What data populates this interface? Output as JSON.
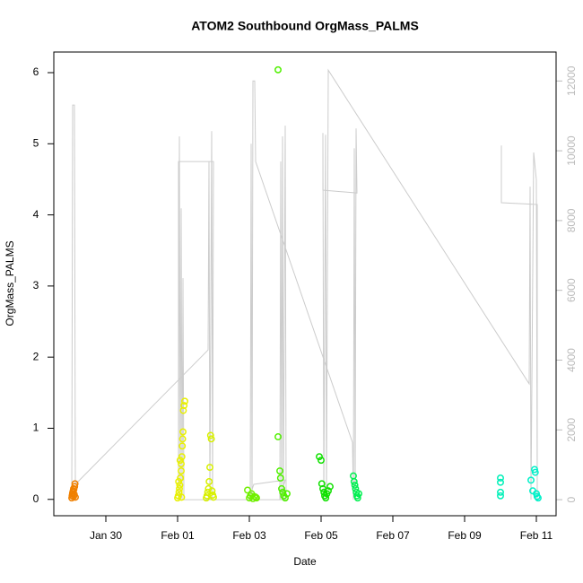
{
  "chart_data": {
    "type": "scatter",
    "title": "ATOM2 Southbound OrgMass_PALMS",
    "x_label": "Date",
    "y_label": "OrgMass_PALMS",
    "xlim": [
      28.55,
      42.55
    ],
    "xticks": [
      {
        "value": 30,
        "label": "Jan 30"
      },
      {
        "value": 32,
        "label": "Feb 01"
      },
      {
        "value": 34,
        "label": "Feb 03"
      },
      {
        "value": 36,
        "label": "Feb 05"
      },
      {
        "value": 38,
        "label": "Feb 07"
      },
      {
        "value": 40,
        "label": "Feb 09"
      },
      {
        "value": 42,
        "label": "Feb 11"
      }
    ],
    "ylim": [
      -0.23,
      6.29
    ],
    "yticks": [
      0,
      1,
      2,
      3,
      4,
      5,
      6
    ],
    "y2lim": [
      -460,
      12830
    ],
    "y2ticks": [
      0,
      2000,
      4000,
      6000,
      8000,
      10000,
      12000
    ],
    "grid": false,
    "series": [
      {
        "color": "#f08000",
        "x": [
          29.05,
          29.06,
          29.07,
          29.08,
          29.09,
          29.1,
          29.11,
          29.12,
          29.13,
          29.14,
          29.15,
          29.1
        ],
        "values": [
          0.02,
          0.05,
          0.08,
          0.1,
          0.12,
          0.04,
          0.14,
          0.07,
          0.18,
          0.22,
          0.03,
          0.15
        ]
      },
      {
        "color": "#e8f000",
        "x": [
          32.0,
          32.02,
          32.04,
          32.05,
          32.06,
          32.08,
          32.1,
          32.1,
          32.12,
          32.13,
          32.14,
          32.15,
          32.16,
          32.18,
          32.2,
          32.03,
          32.07,
          32.11
        ],
        "values": [
          0.02,
          0.05,
          0.1,
          0.15,
          0.2,
          0.3,
          0.4,
          0.5,
          0.6,
          0.75,
          0.85,
          0.95,
          1.25,
          1.32,
          1.38,
          0.25,
          0.55,
          0.03
        ]
      },
      {
        "color": "#d8f000",
        "x": [
          32.8,
          32.82,
          32.84,
          32.86,
          32.88,
          32.9,
          32.92,
          32.94,
          32.96,
          32.98,
          33.0
        ],
        "values": [
          0.02,
          0.05,
          0.1,
          0.15,
          0.25,
          0.45,
          0.9,
          0.85,
          0.12,
          0.06,
          0.03
        ]
      },
      {
        "color": "#70f000",
        "x": [
          33.95,
          34.0,
          34.03,
          34.06,
          34.1,
          34.14,
          34.18,
          34.2
        ],
        "values": [
          0.13,
          0.02,
          0.05,
          0.08,
          0.01,
          0.04,
          0.03,
          0.02
        ]
      },
      {
        "color": "#50f000",
        "x": [
          34.8,
          34.8,
          34.85,
          34.87,
          34.9,
          34.93,
          34.96,
          35.0,
          35.05
        ],
        "values": [
          6.04,
          0.88,
          0.4,
          0.3,
          0.15,
          0.1,
          0.05,
          0.02,
          0.08
        ]
      },
      {
        "color": "#10e000",
        "x": [
          35.95,
          36.0,
          36.02,
          36.05,
          36.08,
          36.1,
          36.13,
          36.16,
          36.2,
          36.25
        ],
        "values": [
          0.6,
          0.55,
          0.22,
          0.15,
          0.1,
          0.05,
          0.02,
          0.08,
          0.12,
          0.18
        ]
      },
      {
        "color": "#00f050",
        "x": [
          36.9,
          36.92,
          36.94,
          36.96,
          36.98,
          37.0,
          37.02,
          37.05
        ],
        "values": [
          0.33,
          0.25,
          0.2,
          0.15,
          0.1,
          0.05,
          0.02,
          0.08
        ]
      },
      {
        "color": "#00f0b8",
        "x": [
          41.0,
          41.0,
          41.0,
          41.0
        ],
        "values": [
          0.3,
          0.24,
          0.1,
          0.05
        ]
      },
      {
        "color": "#00f0c8",
        "x": [
          41.85,
          41.9,
          41.95,
          41.97,
          42.0,
          42.02,
          42.05
        ],
        "values": [
          0.27,
          0.12,
          0.42,
          0.38,
          0.08,
          0.04,
          0.02
        ]
      },
      {
        "color": "#cccccc",
        "axis": "y2",
        "x": [
          29.05,
          29.075,
          29.125,
          29.15,
          32.85,
          32.875,
          32.9,
          32.95,
          32.975,
          33.0,
          32.025,
          32.025,
          32.05,
          32.075,
          32.1,
          32.125,
          32.15,
          32.175,
          32.225,
          33.975,
          34.125,
          35.0,
          34.85,
          34.875,
          34.9,
          34.925,
          34.95,
          35.0,
          35.025,
          34.025,
          34.05,
          34.075,
          34.1,
          34.15,
          34.175,
          36.875,
          36.9,
          36.925,
          36.95,
          36.975,
          37.0,
          36.05,
          36.05,
          36.075,
          36.125,
          36.15,
          36.2,
          41.8,
          41.825,
          41.85,
          41.925,
          42.0,
          42.025,
          42.025,
          41.025,
          41.025
        ],
        "values": [
          0,
          11310,
          11310,
          440,
          4290,
          9690,
          0,
          10560,
          0,
          9690,
          9690,
          0,
          10410,
          0,
          8350,
          0,
          6350,
          0,
          0,
          0,
          440,
          565,
          0,
          9690,
          0,
          10410,
          0,
          10720,
          0,
          0,
          10200,
          0,
          12000,
          12000,
          9690,
          1640,
          0,
          10070,
          0,
          10640,
          8790,
          8870,
          10510,
          0,
          10460,
          0,
          12310,
          3320,
          8970,
          0,
          9950,
          9170,
          0,
          8460,
          8510,
          10150
        ]
      }
    ]
  }
}
